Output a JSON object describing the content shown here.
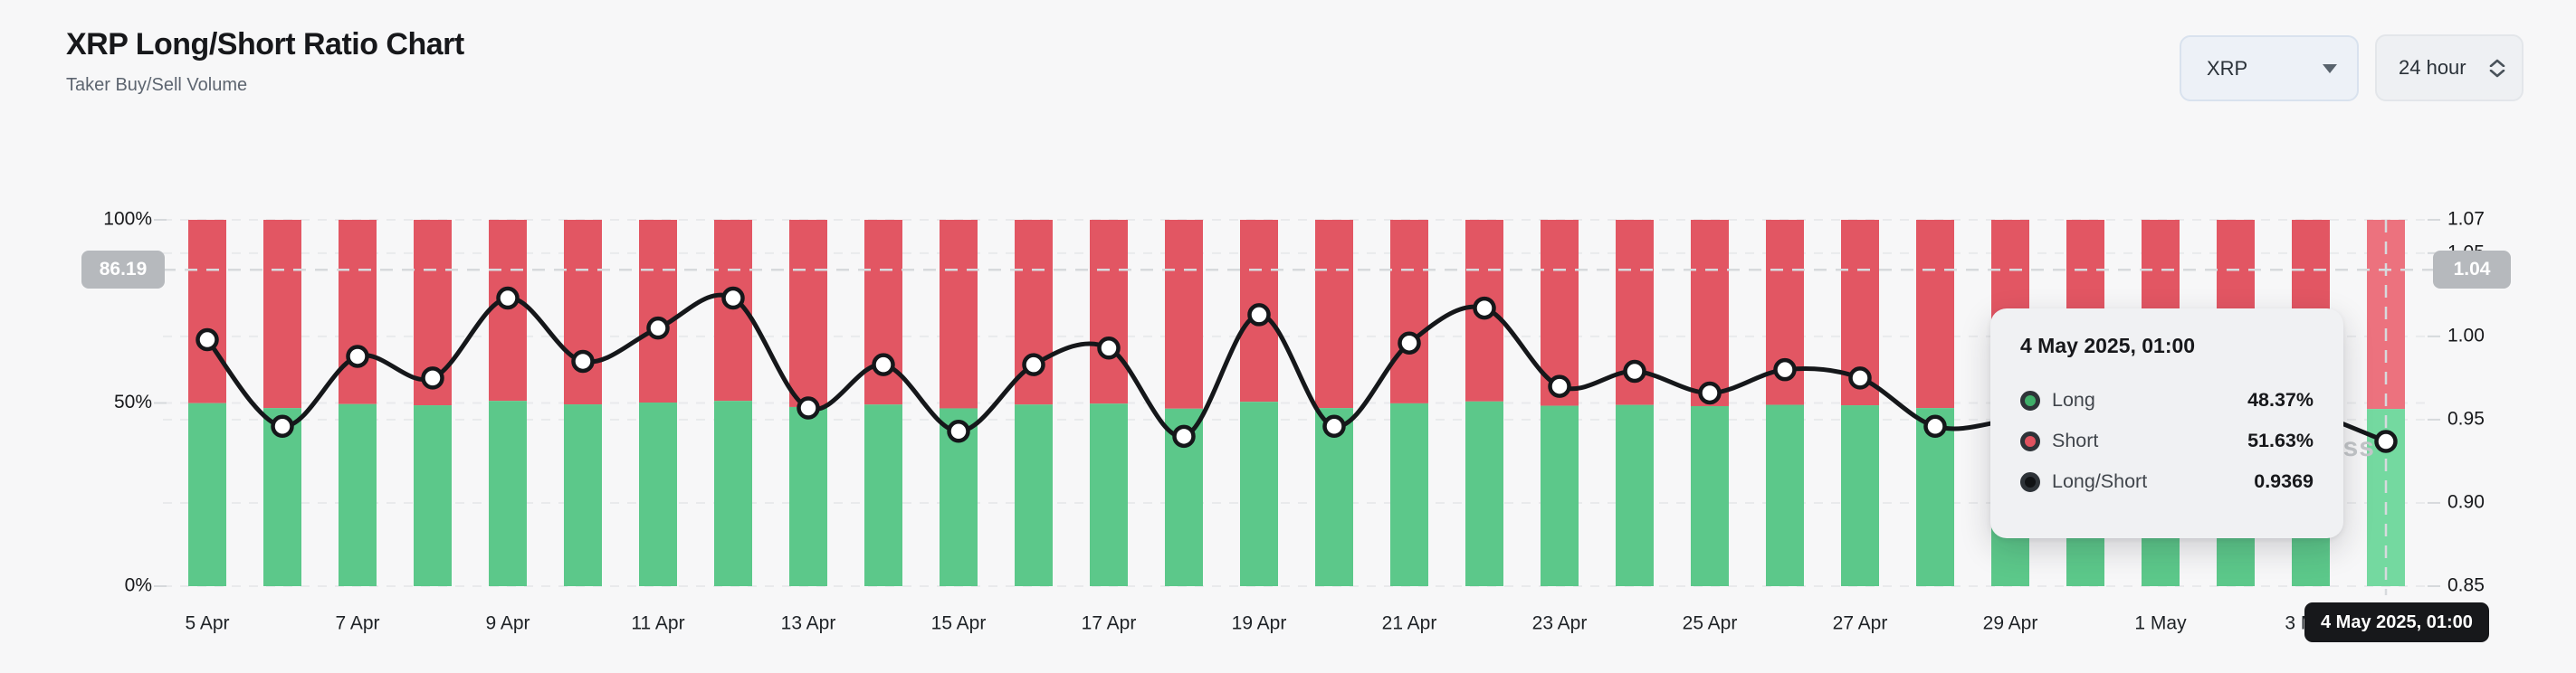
{
  "header": {
    "title": "XRP Long/Short Ratio Chart",
    "subtitle": "Taker Buy/Sell Volume"
  },
  "controls": {
    "symbol": {
      "value": "XRP"
    },
    "interval": {
      "value": "24 hour"
    }
  },
  "chart_data": {
    "type": "bar",
    "stacked": true,
    "title": "XRP Long/Short Ratio Chart",
    "categories": [
      "5 Apr",
      "6 Apr",
      "7 Apr",
      "8 Apr",
      "9 Apr",
      "10 Apr",
      "11 Apr",
      "12 Apr",
      "13 Apr",
      "14 Apr",
      "15 Apr",
      "16 Apr",
      "17 Apr",
      "18 Apr",
      "19 Apr",
      "20 Apr",
      "21 Apr",
      "22 Apr",
      "23 Apr",
      "24 Apr",
      "25 Apr",
      "26 Apr",
      "27 Apr",
      "28 Apr",
      "29 Apr",
      "30 Apr",
      "1 May",
      "2 May",
      "3 May",
      "4 May"
    ],
    "series": [
      {
        "name": "Long",
        "type": "bar",
        "unit": "%",
        "color": "#5cc88a",
        "hover_color": "#74d9a0",
        "values": [
          49.95,
          48.61,
          49.7,
          49.37,
          50.57,
          49.62,
          50.12,
          50.57,
          48.9,
          49.57,
          48.53,
          49.57,
          49.82,
          48.45,
          50.32,
          48.61,
          49.9,
          50.42,
          49.24,
          49.47,
          49.14,
          49.49,
          49.37,
          48.61,
          48.72,
          48.98,
          48.72,
          49.24,
          48.85,
          48.37
        ]
      },
      {
        "name": "Short",
        "type": "bar",
        "unit": "%",
        "color": "#e25663",
        "hover_color": "#ec727e",
        "values": [
          50.05,
          51.39,
          50.3,
          50.63,
          49.43,
          50.38,
          49.88,
          49.43,
          51.1,
          50.43,
          51.47,
          50.43,
          50.18,
          51.55,
          49.68,
          51.39,
          50.1,
          49.58,
          50.76,
          50.53,
          50.86,
          50.51,
          50.63,
          51.39,
          51.28,
          51.02,
          51.28,
          50.76,
          51.15,
          51.63
        ]
      },
      {
        "name": "Long/Short",
        "type": "line",
        "color": "#15171a",
        "values": [
          0.998,
          0.946,
          0.988,
          0.975,
          1.023,
          0.985,
          1.005,
          1.023,
          0.957,
          0.983,
          0.943,
          0.983,
          0.993,
          0.94,
          1.013,
          0.946,
          0.996,
          1.017,
          0.97,
          0.979,
          0.966,
          0.98,
          0.975,
          0.946,
          0.95,
          0.96,
          0.95,
          0.97,
          0.955,
          0.9369
        ]
      }
    ],
    "left_axis": {
      "unit": "%",
      "min": 0,
      "max": 100,
      "ticks": [
        0,
        50,
        100
      ],
      "tick_labels": [
        "0%",
        "50%",
        "100%"
      ]
    },
    "right_axis": {
      "min": 0.85,
      "max": 1.07,
      "ticks": [
        0.85,
        0.9,
        0.95,
        1.0,
        1.05,
        1.07
      ],
      "tick_labels": [
        "0.85",
        "0.90",
        "0.95",
        "1.00",
        "1.05",
        "1.07"
      ],
      "grid_ticks": [
        0.9,
        0.95,
        1.0,
        1.05
      ]
    },
    "x_tick_labels": [
      "5 Apr",
      "7 Apr",
      "9 Apr",
      "11 Apr",
      "13 Apr",
      "15 Apr",
      "17 Apr",
      "19 Apr",
      "21 Apr",
      "23 Apr",
      "25 Apr",
      "27 Apr",
      "29 Apr",
      "1 May",
      "3 May"
    ],
    "highlight_index": 29,
    "grid": true,
    "legend_position": "none"
  },
  "crosshair": {
    "left_badge": "86.19",
    "right_badge": "1.04",
    "h_value": 1.04,
    "v_index": 29,
    "x_badge": "4 May 2025, 01:00"
  },
  "tooltip": {
    "title": "4 May 2025, 01:00",
    "rows": [
      {
        "label": "Long",
        "value": "48.37%",
        "dot_color": "#3fae69"
      },
      {
        "label": "Short",
        "value": "51.63%",
        "dot_color": "#e0525f"
      },
      {
        "label": "Long/Short",
        "value": "0.9369",
        "dot_color": "#101214"
      }
    ]
  },
  "watermark": {
    "text": "coinglass"
  }
}
